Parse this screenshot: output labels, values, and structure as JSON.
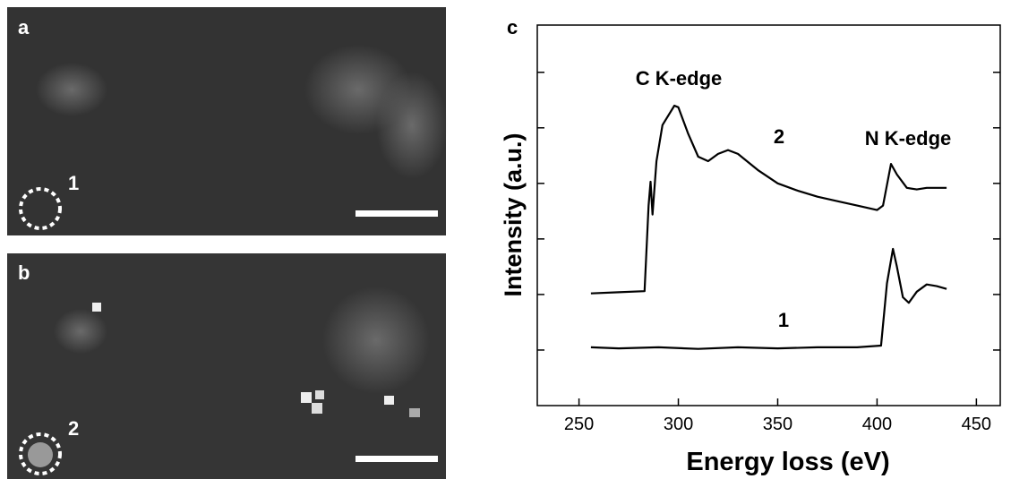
{
  "panels": [
    {
      "label": "a",
      "region_label": "1"
    },
    {
      "label": "b",
      "region_label": "2"
    }
  ],
  "chart_data": {
    "type": "line",
    "label": "c",
    "xlabel": "Energy loss (eV)",
    "ylabel": "Intensity (a.u.)",
    "xlim": [
      229,
      462
    ],
    "xticks": [
      250,
      300,
      350,
      400,
      450
    ],
    "ylim": [
      0,
      6.85
    ],
    "yticks": [
      1,
      2,
      3,
      4,
      5,
      6
    ],
    "ytick_labels_shown": false,
    "annotations": [
      "C K-edge",
      "N K-edge"
    ],
    "series": [
      {
        "name": "1",
        "color": "#000000",
        "x": [
          256,
          270,
          290,
          310,
          330,
          350,
          370,
          390,
          402,
          405,
          408,
          410,
          413,
          416,
          420,
          425,
          430,
          435
        ],
        "values": [
          1.05,
          1.03,
          1.05,
          1.02,
          1.05,
          1.03,
          1.05,
          1.05,
          1.08,
          2.2,
          2.82,
          2.5,
          1.95,
          1.85,
          2.05,
          2.18,
          2.15,
          2.1
        ]
      },
      {
        "name": "2",
        "color": "#000000",
        "x": [
          256,
          270,
          283,
          285,
          286,
          287,
          289,
          292,
          298,
          300,
          305,
          310,
          315,
          320,
          325,
          330,
          340,
          350,
          360,
          370,
          380,
          390,
          400,
          403,
          407,
          410,
          415,
          420,
          425,
          435
        ],
        "values": [
          2.02,
          2.04,
          2.06,
          3.6,
          4.03,
          3.44,
          4.4,
          5.05,
          5.4,
          5.37,
          4.89,
          4.48,
          4.4,
          4.53,
          4.6,
          4.53,
          4.24,
          4.0,
          3.87,
          3.76,
          3.68,
          3.6,
          3.52,
          3.6,
          4.35,
          4.16,
          3.92,
          3.89,
          3.92,
          3.92
        ]
      }
    ]
  }
}
